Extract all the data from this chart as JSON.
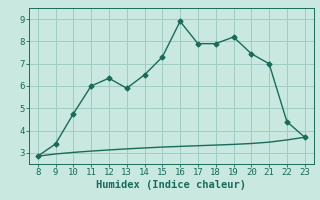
{
  "xlabel": "Humidex (Indice chaleur)",
  "background_color": "#c8e8e0",
  "line_color": "#1a6b5a",
  "x_main": [
    8,
    9,
    10,
    11,
    12,
    13,
    14,
    15,
    16,
    17,
    18,
    19,
    20,
    21,
    22,
    23
  ],
  "y_main": [
    2.85,
    3.4,
    4.75,
    6.0,
    6.35,
    5.9,
    6.5,
    7.3,
    8.9,
    7.9,
    7.9,
    8.2,
    7.45,
    7.0,
    4.4,
    3.7
  ],
  "x_linear": [
    8,
    9,
    10,
    11,
    12,
    13,
    14,
    15,
    16,
    17,
    18,
    19,
    20,
    21,
    22,
    23
  ],
  "y_linear": [
    2.85,
    2.95,
    3.02,
    3.08,
    3.13,
    3.18,
    3.22,
    3.26,
    3.29,
    3.32,
    3.35,
    3.38,
    3.42,
    3.48,
    3.58,
    3.7
  ],
  "xlim": [
    7.5,
    23.5
  ],
  "ylim": [
    2.5,
    9.5
  ],
  "xticks": [
    8,
    9,
    10,
    11,
    12,
    13,
    14,
    15,
    16,
    17,
    18,
    19,
    20,
    21,
    22,
    23
  ],
  "yticks": [
    3,
    4,
    5,
    6,
    7,
    8,
    9
  ],
  "grid_color": "#a0ccc4",
  "marker": "D",
  "marker_size": 2.5,
  "line_width": 1.0,
  "tick_fontsize": 6.5,
  "label_fontsize": 7.5
}
